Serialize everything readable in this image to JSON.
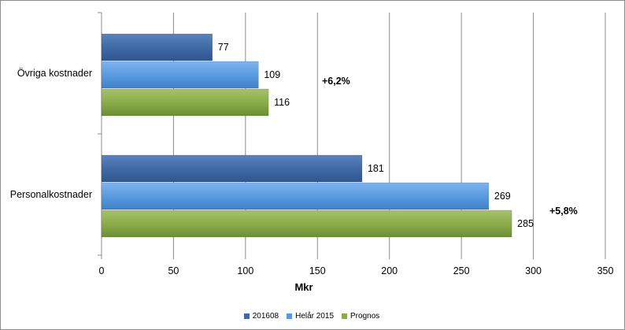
{
  "chart_data": {
    "type": "bar",
    "orientation": "horizontal",
    "categories": [
      "Övriga kostnader",
      "Personalkostnader"
    ],
    "series": [
      {
        "name": "201608",
        "values": [
          77,
          181
        ],
        "color": "#3f6aa6"
      },
      {
        "name": "Helår 2015",
        "values": [
          109,
          269
        ],
        "color": "#5a9be0"
      },
      {
        "name": "Prognos",
        "values": [
          116,
          285
        ],
        "color": "#8aac4a"
      }
    ],
    "annotations": [
      {
        "category": "Övriga kostnader",
        "text": "+6,2%"
      },
      {
        "category": "Personalkostnader",
        "text": "+5,8%"
      }
    ],
    "xlabel": "Mkr",
    "xlim": [
      0,
      350
    ],
    "xticks": [
      0,
      50,
      100,
      150,
      200,
      250,
      300,
      350
    ],
    "grid": true,
    "legend_position": "bottom"
  }
}
